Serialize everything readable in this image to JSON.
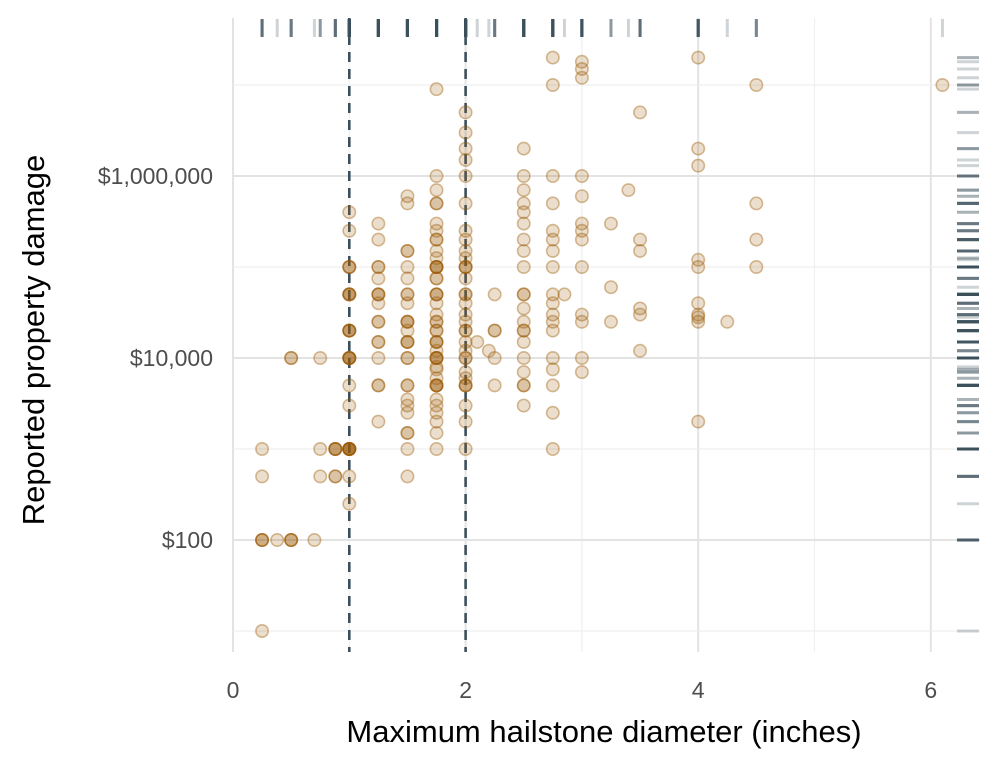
{
  "chart_data": {
    "type": "scatter",
    "title": "",
    "xlabel": "Maximum hailstone diameter (inches)",
    "ylabel": "Reported property damage",
    "x_ticks": [
      0,
      2,
      4,
      6
    ],
    "x_tick_labels": [
      "0",
      "2",
      "4",
      "6"
    ],
    "xlim": [
      0,
      6.4
    ],
    "y_scale": "log10",
    "y_ticks": [
      100,
      10000,
      1000000
    ],
    "y_tick_labels": [
      "$100",
      "$10,000",
      "$1,000,000"
    ],
    "ylim": [
      5,
      30000000
    ],
    "reference_lines_x": [
      1,
      2
    ],
    "grid": true,
    "marginal_rugs": [
      "top",
      "right"
    ],
    "point_color": "#9a5b05",
    "reference_line_color": "#3c4f5c",
    "points": [
      [
        0.25,
        10
      ],
      [
        0.25,
        100
      ],
      [
        0.25,
        100
      ],
      [
        0.25,
        100
      ],
      [
        0.25,
        500
      ],
      [
        0.25,
        1000
      ],
      [
        0.38,
        100
      ],
      [
        0.5,
        100
      ],
      [
        0.5,
        100
      ],
      [
        0.5,
        100
      ],
      [
        0.5,
        10000
      ],
      [
        0.5,
        10000
      ],
      [
        0.7,
        100
      ],
      [
        0.75,
        500
      ],
      [
        0.75,
        1000
      ],
      [
        0.75,
        10000
      ],
      [
        0.88,
        500
      ],
      [
        0.88,
        1000
      ],
      [
        0.88,
        1000
      ],
      [
        0.88,
        1000
      ],
      [
        0.88,
        1000
      ],
      [
        0.88,
        500
      ],
      [
        1,
        250
      ],
      [
        1,
        500
      ],
      [
        1,
        1000
      ],
      [
        1,
        1000
      ],
      [
        1,
        1000
      ],
      [
        1,
        1000
      ],
      [
        1,
        1000
      ],
      [
        1,
        1000
      ],
      [
        1,
        1000
      ],
      [
        1,
        3000
      ],
      [
        1,
        5000
      ],
      [
        1,
        10000
      ],
      [
        1,
        10000
      ],
      [
        1,
        10000
      ],
      [
        1,
        10000
      ],
      [
        1,
        20000
      ],
      [
        1,
        20000
      ],
      [
        1,
        20000
      ],
      [
        1,
        20000
      ],
      [
        1,
        50000
      ],
      [
        1,
        50000
      ],
      [
        1,
        50000
      ],
      [
        1,
        50000
      ],
      [
        1,
        100000
      ],
      [
        1,
        100000
      ],
      [
        1,
        100000
      ],
      [
        1,
        250000
      ],
      [
        1,
        400000
      ],
      [
        1,
        10000
      ],
      [
        1.25,
        2000
      ],
      [
        1.25,
        5000
      ],
      [
        1.25,
        5000
      ],
      [
        1.25,
        10000
      ],
      [
        1.25,
        15000
      ],
      [
        1.25,
        15000
      ],
      [
        1.25,
        25000
      ],
      [
        1.25,
        25000
      ],
      [
        1.25,
        50000
      ],
      [
        1.25,
        50000
      ],
      [
        1.25,
        50000
      ],
      [
        1.25,
        75000
      ],
      [
        1.25,
        100000
      ],
      [
        1.25,
        100000
      ],
      [
        1.25,
        200000
      ],
      [
        1.25,
        300000
      ],
      [
        1.25,
        40000
      ],
      [
        1.5,
        500
      ],
      [
        1.5,
        1000
      ],
      [
        1.5,
        1500
      ],
      [
        1.5,
        1500
      ],
      [
        1.5,
        2500
      ],
      [
        1.5,
        3000
      ],
      [
        1.5,
        3500
      ],
      [
        1.5,
        5000
      ],
      [
        1.5,
        5000
      ],
      [
        1.5,
        10000
      ],
      [
        1.5,
        10000
      ],
      [
        1.5,
        15000
      ],
      [
        1.5,
        15000
      ],
      [
        1.5,
        15000
      ],
      [
        1.5,
        25000
      ],
      [
        1.5,
        25000
      ],
      [
        1.5,
        25000
      ],
      [
        1.5,
        40000
      ],
      [
        1.5,
        50000
      ],
      [
        1.5,
        50000
      ],
      [
        1.5,
        75000
      ],
      [
        1.5,
        100000
      ],
      [
        1.5,
        150000
      ],
      [
        1.5,
        150000
      ],
      [
        1.5,
        500000
      ],
      [
        1.5,
        600000
      ],
      [
        1.5,
        20000
      ],
      [
        1.75,
        1000
      ],
      [
        1.75,
        1500
      ],
      [
        1.75,
        2000
      ],
      [
        1.75,
        2500
      ],
      [
        1.75,
        3000
      ],
      [
        1.75,
        3500
      ],
      [
        1.75,
        5000
      ],
      [
        1.75,
        5000
      ],
      [
        1.75,
        5000
      ],
      [
        1.75,
        5000
      ],
      [
        1.75,
        6000
      ],
      [
        1.75,
        7500
      ],
      [
        1.75,
        10000
      ],
      [
        1.75,
        10000
      ],
      [
        1.75,
        10000
      ],
      [
        1.75,
        10000
      ],
      [
        1.75,
        12000
      ],
      [
        1.75,
        15000
      ],
      [
        1.75,
        15000
      ],
      [
        1.75,
        15000
      ],
      [
        1.75,
        20000
      ],
      [
        1.75,
        20000
      ],
      [
        1.75,
        25000
      ],
      [
        1.75,
        25000
      ],
      [
        1.75,
        30000
      ],
      [
        1.75,
        40000
      ],
      [
        1.75,
        50000
      ],
      [
        1.75,
        50000
      ],
      [
        1.75,
        50000
      ],
      [
        1.75,
        75000
      ],
      [
        1.75,
        75000
      ],
      [
        1.75,
        100000
      ],
      [
        1.75,
        100000
      ],
      [
        1.75,
        100000
      ],
      [
        1.75,
        100000
      ],
      [
        1.75,
        125000
      ],
      [
        1.75,
        150000
      ],
      [
        1.75,
        200000
      ],
      [
        1.75,
        200000
      ],
      [
        1.75,
        250000
      ],
      [
        1.75,
        300000
      ],
      [
        1.75,
        500000
      ],
      [
        1.75,
        500000
      ],
      [
        1.75,
        700000
      ],
      [
        1.75,
        1000000
      ],
      [
        1.75,
        9000000
      ],
      [
        1.75,
        8000
      ],
      [
        2,
        1000
      ],
      [
        2,
        2000
      ],
      [
        2,
        3000
      ],
      [
        2,
        5000
      ],
      [
        2,
        5000
      ],
      [
        2,
        5000
      ],
      [
        2,
        7000
      ],
      [
        2,
        10000
      ],
      [
        2,
        10000
      ],
      [
        2,
        12000
      ],
      [
        2,
        15000
      ],
      [
        2,
        20000
      ],
      [
        2,
        20000
      ],
      [
        2,
        25000
      ],
      [
        2,
        30000
      ],
      [
        2,
        40000
      ],
      [
        2,
        50000
      ],
      [
        2,
        50000
      ],
      [
        2,
        75000
      ],
      [
        2,
        100000
      ],
      [
        2,
        100000
      ],
      [
        2,
        100000
      ],
      [
        2,
        125000
      ],
      [
        2,
        150000
      ],
      [
        2,
        200000
      ],
      [
        2,
        250000
      ],
      [
        2,
        500000
      ],
      [
        2,
        1000000
      ],
      [
        2,
        1500000
      ],
      [
        2,
        2000000
      ],
      [
        2,
        3000000
      ],
      [
        2,
        5000000
      ],
      [
        2,
        6000
      ],
      [
        2.1,
        15000
      ],
      [
        2.2,
        12000
      ],
      [
        2.25,
        5000
      ],
      [
        2.25,
        10000
      ],
      [
        2.25,
        20000
      ],
      [
        2.25,
        20000
      ],
      [
        2.25,
        50000
      ],
      [
        2.5,
        3000
      ],
      [
        2.5,
        5000
      ],
      [
        2.5,
        5000
      ],
      [
        2.5,
        10000
      ],
      [
        2.5,
        15000
      ],
      [
        2.5,
        20000
      ],
      [
        2.5,
        20000
      ],
      [
        2.5,
        25000
      ],
      [
        2.5,
        35000
      ],
      [
        2.5,
        50000
      ],
      [
        2.5,
        50000
      ],
      [
        2.5,
        100000
      ],
      [
        2.5,
        150000
      ],
      [
        2.5,
        200000
      ],
      [
        2.5,
        300000
      ],
      [
        2.5,
        400000
      ],
      [
        2.5,
        500000
      ],
      [
        2.5,
        1000000
      ],
      [
        2.5,
        2000000
      ],
      [
        2.5,
        700000
      ],
      [
        2.5,
        7000
      ],
      [
        2.75,
        1000
      ],
      [
        2.75,
        2500
      ],
      [
        2.75,
        5000
      ],
      [
        2.75,
        7500
      ],
      [
        2.75,
        10000
      ],
      [
        2.75,
        20000
      ],
      [
        2.75,
        25000
      ],
      [
        2.75,
        40000
      ],
      [
        2.75,
        50000
      ],
      [
        2.75,
        100000
      ],
      [
        2.75,
        150000
      ],
      [
        2.75,
        200000
      ],
      [
        2.75,
        250000
      ],
      [
        2.75,
        500000
      ],
      [
        2.75,
        1000000
      ],
      [
        2.75,
        10000000
      ],
      [
        2.75,
        20000000
      ],
      [
        2.75,
        30000
      ],
      [
        2.85,
        50000
      ],
      [
        3,
        7000
      ],
      [
        3,
        10000
      ],
      [
        3,
        25000
      ],
      [
        3,
        30000
      ],
      [
        3,
        100000
      ],
      [
        3,
        200000
      ],
      [
        3,
        250000
      ],
      [
        3,
        300000
      ],
      [
        3,
        600000
      ],
      [
        3,
        1000000
      ],
      [
        3,
        12000000
      ],
      [
        3,
        15000000
      ],
      [
        3,
        18000000
      ],
      [
        3.25,
        25000
      ],
      [
        3.25,
        60000
      ],
      [
        3.25,
        300000
      ],
      [
        3.4,
        700000
      ],
      [
        3.5,
        12000
      ],
      [
        3.5,
        30000
      ],
      [
        3.5,
        35000
      ],
      [
        3.5,
        150000
      ],
      [
        3.5,
        200000
      ],
      [
        3.5,
        5000000
      ],
      [
        4,
        2000
      ],
      [
        4,
        25000
      ],
      [
        4,
        30000
      ],
      [
        4,
        40000
      ],
      [
        4,
        100000
      ],
      [
        4,
        120000
      ],
      [
        4,
        1300000
      ],
      [
        4,
        2000000
      ],
      [
        4,
        20000000
      ],
      [
        4,
        28000
      ],
      [
        4.25,
        25000
      ],
      [
        4.5,
        100000
      ],
      [
        4.5,
        200000
      ],
      [
        4.5,
        500000
      ],
      [
        4.5,
        10000000
      ],
      [
        6.1,
        10000000
      ]
    ]
  }
}
